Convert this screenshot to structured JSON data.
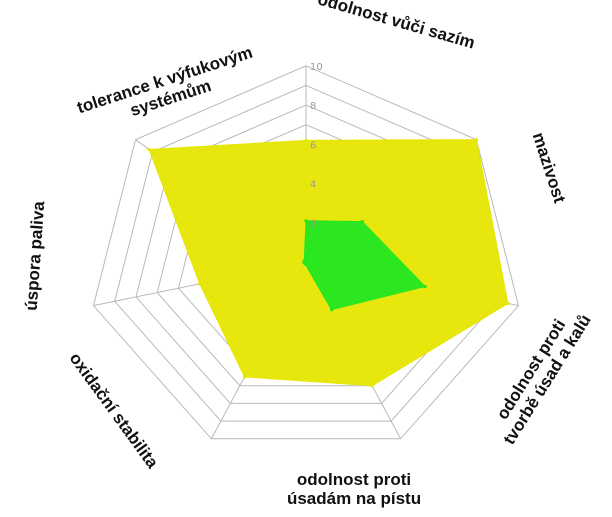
{
  "chart_data": {
    "type": "radar",
    "title": "",
    "categories": [
      "odolnost vůči sazím",
      "mazivost",
      "odolnost proti tvorbě úsad a kalů",
      "odolnost proti úsadám na pístu",
      "oxidační stabilita",
      "úspora paliva",
      "tolerance k výfukovým systémům"
    ],
    "category_lines": [
      [
        "odolnost vůči sazím"
      ],
      [
        "mazivost"
      ],
      [
        "odolnost proti",
        "tvorbě úsad a kalů"
      ],
      [
        "odolnost proti",
        "úsadám na pístu"
      ],
      [
        "oxidační stabilita"
      ],
      [
        "úspora paliva"
      ],
      [
        "tolerance k výfukovým",
        "systémům"
      ]
    ],
    "r_ticks": [
      2,
      4,
      6,
      8,
      10
    ],
    "r_range": [
      0,
      10
    ],
    "grid": true,
    "legend": "none",
    "series": [
      {
        "values": [
          6.2,
          10,
          9.5,
          7,
          6.5,
          5,
          9.2
        ],
        "color": "#e6e600"
      },
      {
        "values": [
          2.1,
          3.3,
          5.6,
          2.7,
          0.1,
          0.1,
          0.1
        ],
        "color": "#22e622"
      }
    ]
  }
}
